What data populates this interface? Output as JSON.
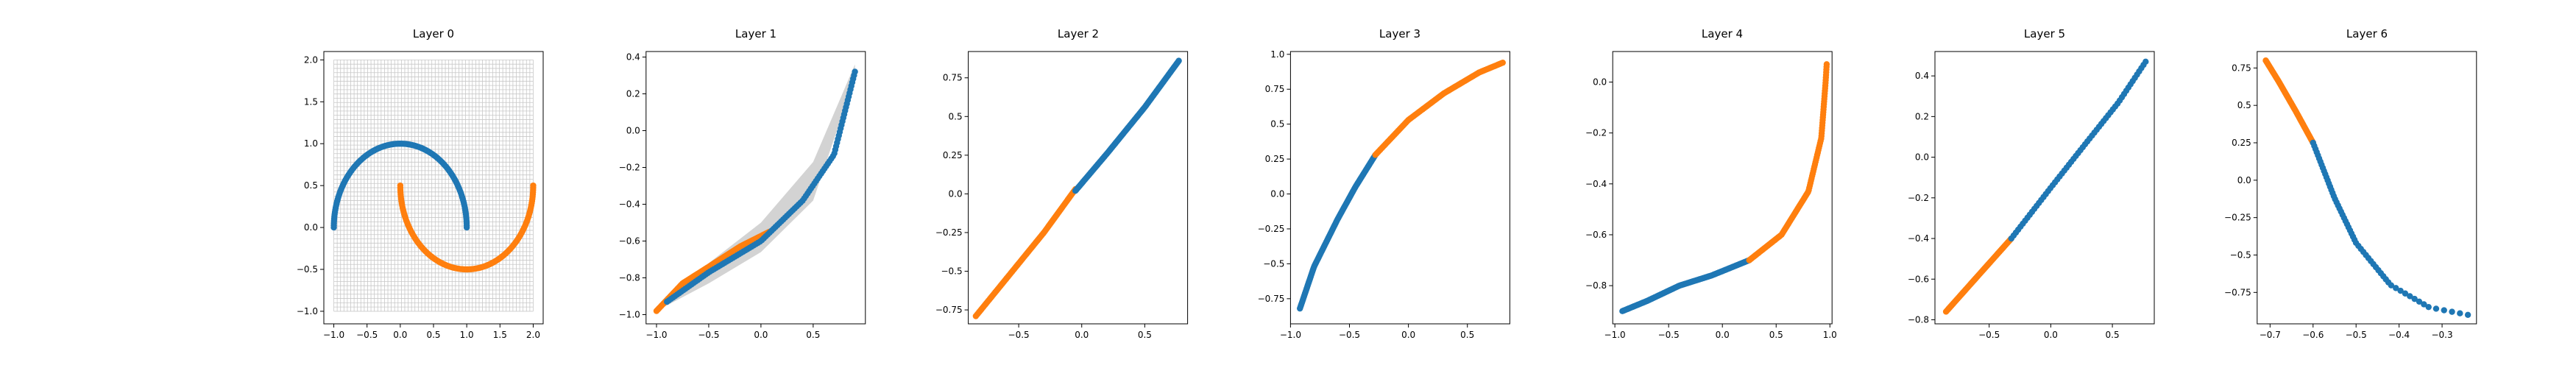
{
  "figure": {
    "background": "#ffffff",
    "axes_color": "#000000",
    "grid_color": "#c8c8c8",
    "band_color": "#d3d3d3",
    "color_class_0": "#1f77b4",
    "color_class_1": "#ff7f0e"
  },
  "chart_data": [
    {
      "type": "scatter",
      "title": "Layer 0",
      "xlim": [
        -1.15,
        2.15
      ],
      "ylim": [
        -1.15,
        2.1
      ],
      "xticks": [
        -1.0,
        -0.5,
        0.0,
        0.5,
        1.0,
        1.5,
        2.0
      ],
      "yticks": [
        -1.0,
        -0.5,
        0.0,
        0.5,
        1.0,
        1.5,
        2.0
      ],
      "grid_mesh": {
        "x_range": [
          -1.0,
          2.0
        ],
        "y_range": [
          -1.0,
          2.0
        ],
        "lines": 60
      },
      "series": [
        {
          "class": 0,
          "shape": "arc",
          "center": [
            0.0,
            0.0
          ],
          "radius": 1.0,
          "angle_range_deg": [
            0,
            180
          ],
          "points": 120
        },
        {
          "class": 1,
          "shape": "arc",
          "center": [
            1.0,
            0.5
          ],
          "radius": 1.0,
          "angle_range_deg": [
            180,
            360
          ],
          "points": 120
        }
      ]
    },
    {
      "type": "scatter",
      "title": "Layer 1",
      "xlim": [
        -1.1,
        1.0
      ],
      "ylim": [
        -1.05,
        0.43
      ],
      "xticks": [
        -1.0,
        -0.5,
        0.0,
        0.5
      ],
      "yticks": [
        -1.0,
        -0.8,
        -0.6,
        -0.4,
        -0.2,
        0.0,
        0.2,
        0.4
      ],
      "band": {
        "upper": [
          [
            -1.0,
            -0.96
          ],
          [
            -0.5,
            -0.72
          ],
          [
            0.0,
            -0.5
          ],
          [
            0.5,
            -0.17
          ],
          [
            0.9,
            0.36
          ]
        ],
        "lower": [
          [
            -1.0,
            -0.98
          ],
          [
            -0.5,
            -0.83
          ],
          [
            0.0,
            -0.66
          ],
          [
            0.5,
            -0.38
          ],
          [
            0.9,
            0.29
          ]
        ]
      },
      "series": [
        {
          "class": 1,
          "curve": [
            [
              -1.0,
              -0.98
            ],
            [
              -0.75,
              -0.83
            ],
            [
              -0.5,
              -0.74
            ],
            [
              -0.2,
              -0.63
            ],
            [
              0.08,
              -0.55
            ]
          ],
          "points": 90
        },
        {
          "class": 0,
          "curve": [
            [
              -0.9,
              -0.93
            ],
            [
              -0.5,
              -0.77
            ],
            [
              0.0,
              -0.6
            ],
            [
              0.4,
              -0.38
            ],
            [
              0.7,
              -0.13
            ],
            [
              0.9,
              0.32
            ]
          ],
          "points": 110
        }
      ]
    },
    {
      "type": "scatter",
      "title": "Layer 2",
      "xlim": [
        -0.9,
        0.84
      ],
      "ylim": [
        -0.84,
        0.92
      ],
      "xticks": [
        -0.5,
        0.0,
        0.5
      ],
      "yticks": [
        -0.75,
        -0.5,
        -0.25,
        0.0,
        0.25,
        0.5,
        0.75
      ],
      "series": [
        {
          "class": 1,
          "curve": [
            [
              -0.84,
              -0.79
            ],
            [
              -0.6,
              -0.55
            ],
            [
              -0.3,
              -0.25
            ],
            [
              -0.05,
              0.03
            ]
          ],
          "points": 90
        },
        {
          "class": 0,
          "curve": [
            [
              -0.05,
              0.02
            ],
            [
              0.2,
              0.26
            ],
            [
              0.5,
              0.56
            ],
            [
              0.77,
              0.86
            ]
          ],
          "points": 110
        }
      ]
    },
    {
      "type": "scatter",
      "title": "Layer 3",
      "xlim": [
        -1.0,
        0.86
      ],
      "ylim": [
        -0.93,
        1.02
      ],
      "xticks": [
        -1.0,
        -0.5,
        0.0,
        0.5
      ],
      "yticks": [
        -0.75,
        -0.5,
        -0.25,
        0.0,
        0.25,
        0.5,
        0.75,
        1.0
      ],
      "series": [
        {
          "class": 0,
          "curve": [
            [
              -0.92,
              -0.82
            ],
            [
              -0.8,
              -0.52
            ],
            [
              -0.6,
              -0.18
            ],
            [
              -0.45,
              0.05
            ],
            [
              -0.28,
              0.28
            ]
          ],
          "points": 110
        },
        {
          "class": 1,
          "curve": [
            [
              -0.28,
              0.28
            ],
            [
              0.0,
              0.53
            ],
            [
              0.3,
              0.72
            ],
            [
              0.6,
              0.87
            ],
            [
              0.8,
              0.94
            ]
          ],
          "points": 90
        }
      ]
    },
    {
      "type": "scatter",
      "title": "Layer 4",
      "xlim": [
        -1.02,
        1.02
      ],
      "ylim": [
        -0.95,
        0.12
      ],
      "xticks": [
        -1.0,
        -0.5,
        0.0,
        0.5,
        1.0
      ],
      "yticks": [
        -0.8,
        -0.6,
        -0.4,
        -0.2,
        0.0
      ],
      "series": [
        {
          "class": 0,
          "curve": [
            [
              -0.93,
              -0.9
            ],
            [
              -0.7,
              -0.86
            ],
            [
              -0.4,
              -0.8
            ],
            [
              -0.1,
              -0.76
            ],
            [
              0.25,
              -0.7
            ]
          ],
          "points": 100
        },
        {
          "class": 1,
          "curve": [
            [
              0.25,
              -0.7
            ],
            [
              0.55,
              -0.6
            ],
            [
              0.8,
              -0.43
            ],
            [
              0.92,
              -0.22
            ],
            [
              0.96,
              0.0
            ],
            [
              0.97,
              0.07
            ]
          ],
          "points": 110
        }
      ]
    },
    {
      "type": "scatter",
      "title": "Layer 5",
      "xlim": [
        -0.94,
        0.84
      ],
      "ylim": [
        -0.82,
        0.52
      ],
      "xticks": [
        -0.5,
        0.0,
        0.5
      ],
      "yticks": [
        -0.8,
        -0.6,
        -0.4,
        -0.2,
        0.0,
        0.2,
        0.4
      ],
      "series": [
        {
          "class": 1,
          "curve": [
            [
              -0.85,
              -0.76
            ],
            [
              -0.6,
              -0.59
            ],
            [
              -0.32,
              -0.4
            ]
          ],
          "points": 80
        },
        {
          "class": 0,
          "curve": [
            [
              -0.32,
              -0.4
            ],
            [
              0.0,
              -0.15
            ],
            [
              0.3,
              0.08
            ],
            [
              0.55,
              0.27
            ],
            [
              0.77,
              0.47
            ]
          ],
          "points": 60
        }
      ]
    },
    {
      "type": "scatter",
      "title": "Layer 6",
      "xlim": [
        -0.73,
        -0.22
      ],
      "ylim": [
        -0.96,
        0.86
      ],
      "xticks": [
        -0.7,
        -0.6,
        -0.5,
        -0.4,
        -0.3
      ],
      "yticks": [
        -0.75,
        -0.5,
        -0.25,
        0.0,
        0.25,
        0.5,
        0.75
      ],
      "series": [
        {
          "class": 1,
          "curve": [
            [
              -0.71,
              0.8
            ],
            [
              -0.68,
              0.66
            ],
            [
              -0.64,
              0.46
            ],
            [
              -0.6,
              0.25
            ]
          ],
          "points": 80
        },
        {
          "class": 0,
          "curve": [
            [
              -0.6,
              0.25
            ],
            [
              -0.55,
              -0.12
            ],
            [
              -0.5,
              -0.42
            ],
            [
              -0.42,
              -0.7
            ],
            [
              -0.33,
              -0.85
            ],
            [
              -0.24,
              -0.9
            ]
          ],
          "points": 60
        }
      ]
    }
  ]
}
